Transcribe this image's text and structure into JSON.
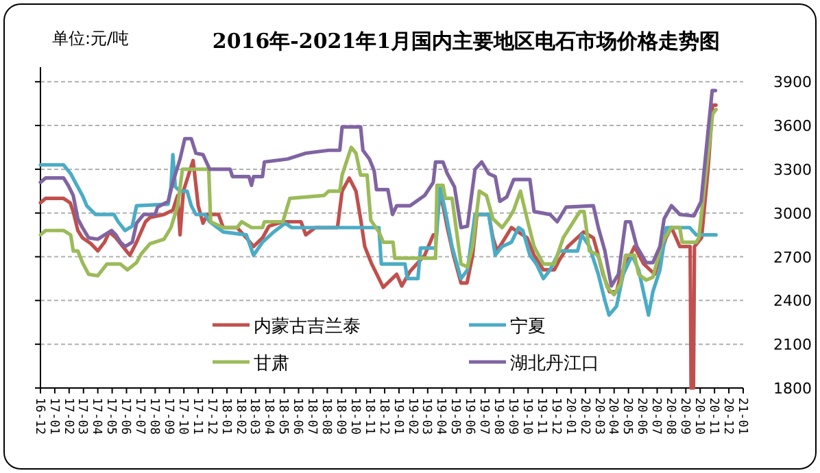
{
  "chart_data": {
    "type": "line",
    "title": "2016年-2021年1月国内主要地区电石市场价格走势图",
    "ylabel": "单位:元/吨",
    "xlim": [
      "2016-12",
      "2021-01"
    ],
    "ylim": [
      1800,
      4000
    ],
    "yticks": [
      1800,
      2100,
      2400,
      2700,
      3000,
      3300,
      3600,
      3900
    ],
    "xticks": [
      {
        "value": "2016-12",
        "label": "16-12"
      },
      {
        "value": "2017-01",
        "label": "17-01"
      },
      {
        "value": "2017-02",
        "label": "17-02"
      },
      {
        "value": "2017-03",
        "label": "17-03"
      },
      {
        "value": "2017-04",
        "label": "17-04"
      },
      {
        "value": "2017-05",
        "label": "17-05"
      },
      {
        "value": "2017-06",
        "label": "17-06"
      },
      {
        "value": "2017-07",
        "label": "17-07"
      },
      {
        "value": "2017-08",
        "label": "17-08"
      },
      {
        "value": "2017-09",
        "label": "17-09"
      },
      {
        "value": "2017-10",
        "label": "17-10"
      },
      {
        "value": "2017-11",
        "label": "17-11"
      },
      {
        "value": "2017-12",
        "label": "17-12"
      },
      {
        "value": "2018-01",
        "label": "18-01"
      },
      {
        "value": "2018-02",
        "label": "18-02"
      },
      {
        "value": "2018-03",
        "label": "18-03"
      },
      {
        "value": "2018-04",
        "label": "18-04"
      },
      {
        "value": "2018-05",
        "label": "18-05"
      },
      {
        "value": "2018-06",
        "label": "18-06"
      },
      {
        "value": "2018-07",
        "label": "18-07"
      },
      {
        "value": "2018-08",
        "label": "18-08"
      },
      {
        "value": "2018-09",
        "label": "18-09"
      },
      {
        "value": "2018-10",
        "label": "18-10"
      },
      {
        "value": "2018-11",
        "label": "18-11"
      },
      {
        "value": "2018-12",
        "label": "18-12"
      },
      {
        "value": "2019-01",
        "label": "19-01"
      },
      {
        "value": "2019-02",
        "label": "19-02"
      },
      {
        "value": "2019-03",
        "label": "19-03"
      },
      {
        "value": "2019-04",
        "label": "19-04"
      },
      {
        "value": "2019-05",
        "label": "19-05"
      },
      {
        "value": "2019-06",
        "label": "19-06"
      },
      {
        "value": "2019-07",
        "label": "19-07"
      },
      {
        "value": "2019-08",
        "label": "19-08"
      },
      {
        "value": "2019-09",
        "label": "19-09"
      },
      {
        "value": "2019-10",
        "label": "19-10"
      },
      {
        "value": "2019-11",
        "label": "19-11"
      },
      {
        "value": "2019-12",
        "label": "19-12"
      },
      {
        "value": "2020-01",
        "label": "20-01"
      },
      {
        "value": "2020-02",
        "label": "20-02"
      },
      {
        "value": "2020-03",
        "label": "20-03"
      },
      {
        "value": "2020-04",
        "label": "20-04"
      },
      {
        "value": "2020-05",
        "label": "20-05"
      },
      {
        "value": "2020-06",
        "label": "20-06"
      },
      {
        "value": "2020-07",
        "label": "20-07"
      },
      {
        "value": "2020-08",
        "label": "20-08"
      },
      {
        "value": "2020-09",
        "label": "20-09"
      },
      {
        "value": "2020-10",
        "label": "20-10"
      },
      {
        "value": "2020-11",
        "label": "20-11"
      },
      {
        "value": "2020-12",
        "label": "20-12"
      },
      {
        "value": "2021-01",
        "label": "21-01"
      }
    ],
    "grid": "y",
    "legend": "bottom",
    "marker": "none",
    "line_style": "solid",
    "series": [
      {
        "name": "内蒙古吉兰泰",
        "color": "#c0504d",
        "x": [
          "2016-12-01",
          "2016-12-12",
          "2017-01-20",
          "2017-02-03",
          "2017-02-09",
          "2017-02-18",
          "2017-02-27",
          "2017-03-17",
          "2017-04-01",
          "2017-04-15",
          "2017-04-25",
          "2017-05-09",
          "2017-05-24",
          "2017-06-08",
          "2017-06-22",
          "2017-07-11",
          "2017-07-21",
          "2017-08-20",
          "2017-09-08",
          "2017-09-18",
          "2017-09-23",
          "2017-09-30",
          "2017-10-12",
          "2017-10-21",
          "2017-11-01",
          "2017-11-11",
          "2017-11-20",
          "2017-12-14",
          "2017-12-24",
          "2018-01-23",
          "2018-02-11",
          "2018-02-25",
          "2018-03-16",
          "2018-03-30",
          "2018-04-28",
          "2018-06-06",
          "2018-06-16",
          "2018-07-06",
          "2018-08-23",
          "2018-09-02",
          "2018-09-17",
          "2018-10-01",
          "2018-10-11",
          "2018-10-20",
          "2018-11-04",
          "2018-11-19",
          "2018-11-28",
          "2018-12-27",
          "2019-01-07",
          "2019-01-25",
          "2019-02-23",
          "2019-03-13",
          "2019-03-20",
          "2019-03-23",
          "2019-04-03",
          "2019-04-12",
          "2019-04-25",
          "2019-05-11",
          "2019-05-24",
          "2019-06-05",
          "2019-06-14",
          "2019-07-09",
          "2019-07-18",
          "2019-07-27",
          "2019-08-27",
          "2019-09-29",
          "2019-10-14",
          "2019-11-03",
          "2019-11-26",
          "2019-12-07",
          "2019-12-25",
          "2020-01-28",
          "2020-02-17",
          "2020-02-27",
          "2020-03-08",
          "2020-03-22",
          "2020-04-06",
          "2020-04-15",
          "2020-05-05",
          "2020-05-14",
          "2020-06-03",
          "2020-06-26",
          "2020-07-20",
          "2020-08-01",
          "2020-08-19",
          "2020-09-10",
          "2020-09-12",
          "2020-09-17",
          "2020-09-19",
          "2020-10-04",
          "2020-10-18",
          "2020-10-28",
          "2020-11-04"
        ],
        "values": [
          3070,
          3100,
          3100,
          3070,
          3010,
          2880,
          2830,
          2790,
          2740,
          2800,
          2870,
          2830,
          2770,
          2710,
          2800,
          2940,
          2970,
          2990,
          3020,
          3120,
          2850,
          3150,
          3270,
          3360,
          3050,
          2930,
          2990,
          2990,
          2900,
          2900,
          2830,
          2770,
          2830,
          2910,
          2940,
          2940,
          2850,
          2900,
          2900,
          3150,
          3240,
          3150,
          2960,
          2770,
          2650,
          2550,
          2490,
          2580,
          2500,
          2600,
          2710,
          2850,
          2850,
          3150,
          3050,
          2900,
          2710,
          2520,
          2520,
          2710,
          2990,
          2990,
          2830,
          2740,
          2900,
          2830,
          2710,
          2610,
          2610,
          2680,
          2770,
          2870,
          2830,
          2710,
          2580,
          2460,
          2460,
          2580,
          2710,
          2770,
          2650,
          2580,
          2830,
          2900,
          2770,
          2770,
          1800,
          1800,
          2770,
          2830,
          3300,
          3740,
          3740
        ]
      },
      {
        "name": "宁夏",
        "color": "#4bacc6",
        "x": [
          "2016-12-01",
          "2017-01-20",
          "2017-02-04",
          "2017-02-13",
          "2017-02-27",
          "2017-03-08",
          "2017-03-27",
          "2017-05-05",
          "2017-05-14",
          "2017-05-29",
          "2017-06-13",
          "2017-06-22",
          "2017-08-29",
          "2017-09-04",
          "2017-09-08",
          "2017-09-13",
          "2017-09-23",
          "2017-10-08",
          "2017-10-17",
          "2017-10-27",
          "2017-11-15",
          "2017-11-25",
          "2017-12-24",
          "2018-02-11",
          "2018-02-25",
          "2018-03-16",
          "2018-04-09",
          "2018-05-03",
          "2018-05-17",
          "2018-11-19",
          "2018-11-24",
          "2019-01-14",
          "2019-01-19",
          "2019-02-10",
          "2019-02-15",
          "2019-03-18",
          "2019-03-28",
          "2019-04-08",
          "2019-04-22",
          "2019-05-11",
          "2019-05-25",
          "2019-06-10",
          "2019-07-09",
          "2019-07-23",
          "2019-08-07",
          "2019-08-27",
          "2019-09-11",
          "2019-09-20",
          "2019-10-05",
          "2019-10-19",
          "2019-11-03",
          "2019-11-17",
          "2019-12-07",
          "2020-01-15",
          "2020-01-24",
          "2020-02-09",
          "2020-02-27",
          "2020-03-12",
          "2020-03-21",
          "2020-04-06",
          "2020-04-20",
          "2020-05-09",
          "2020-05-23",
          "2020-06-13",
          "2020-06-22",
          "2020-07-07",
          "2020-07-21",
          "2020-09-09",
          "2020-09-23",
          "2020-11-04"
        ],
        "values": [
          3330,
          3330,
          3270,
          3210,
          3120,
          3050,
          2990,
          2990,
          2940,
          2880,
          2910,
          3050,
          3060,
          3180,
          3400,
          3180,
          3150,
          3150,
          3050,
          2990,
          2990,
          2940,
          2870,
          2850,
          2710,
          2800,
          2870,
          2930,
          2900,
          2900,
          2650,
          2650,
          2550,
          2550,
          2760,
          2760,
          3180,
          3010,
          2770,
          2550,
          2610,
          2990,
          2990,
          2710,
          2770,
          2800,
          2900,
          2880,
          2710,
          2650,
          2550,
          2610,
          2740,
          2740,
          2850,
          2770,
          2580,
          2400,
          2300,
          2360,
          2580,
          2710,
          2610,
          2300,
          2460,
          2610,
          2900,
          2900,
          2850,
          2850
        ]
      },
      {
        "name": "甘肃",
        "color": "#9bbb59",
        "x": [
          "2016-12-01",
          "2016-12-12",
          "2017-01-20",
          "2017-02-04",
          "2017-02-09",
          "2017-02-18",
          "2017-02-27",
          "2017-03-12",
          "2017-04-01",
          "2017-04-20",
          "2017-05-19",
          "2017-06-03",
          "2017-06-22",
          "2017-07-02",
          "2017-07-21",
          "2017-08-20",
          "2017-09-04",
          "2017-09-18",
          "2017-09-28",
          "2017-11-23",
          "2017-11-27",
          "2017-12-24",
          "2018-01-23",
          "2018-02-02",
          "2018-02-21",
          "2018-03-16",
          "2018-03-20",
          "2018-04-28",
          "2018-05-13",
          "2018-07-25",
          "2018-08-04",
          "2018-08-28",
          "2018-09-02",
          "2018-09-21",
          "2018-10-01",
          "2018-10-11",
          "2018-10-25",
          "2018-11-02",
          "2018-11-19",
          "2018-11-28",
          "2018-12-19",
          "2018-12-23",
          "2019-03-18",
          "2019-03-21",
          "2019-04-03",
          "2019-04-08",
          "2019-04-22",
          "2019-05-11",
          "2019-05-25",
          "2019-06-05",
          "2019-06-19",
          "2019-07-04",
          "2019-07-18",
          "2019-08-07",
          "2019-08-21",
          "2019-09-01",
          "2019-09-15",
          "2019-09-29",
          "2019-10-14",
          "2019-11-03",
          "2019-11-26",
          "2019-12-15",
          "2020-01-20",
          "2020-01-29",
          "2020-02-09",
          "2020-02-27",
          "2020-03-17",
          "2020-04-01",
          "2020-04-15",
          "2020-04-25",
          "2020-05-14",
          "2020-05-23",
          "2020-06-08",
          "2020-06-22",
          "2020-07-12",
          "2020-08-01",
          "2020-08-19",
          "2020-08-24",
          "2020-09-23",
          "2020-09-28",
          "2020-10-28",
          "2020-11-04"
        ],
        "values": [
          2850,
          2880,
          2880,
          2850,
          2740,
          2740,
          2660,
          2580,
          2570,
          2650,
          2650,
          2610,
          2660,
          2720,
          2790,
          2820,
          2900,
          3050,
          3300,
          3300,
          2940,
          2900,
          2900,
          2940,
          2900,
          2900,
          2940,
          2940,
          3100,
          3120,
          3150,
          3150,
          3260,
          3450,
          3410,
          3260,
          3260,
          2950,
          2870,
          2800,
          2800,
          2690,
          2690,
          3190,
          3190,
          3100,
          3100,
          2650,
          2630,
          2770,
          3150,
          3120,
          2960,
          2900,
          2960,
          3020,
          3150,
          2960,
          2770,
          2650,
          2650,
          2830,
          3010,
          3010,
          2740,
          2710,
          2490,
          2440,
          2520,
          2710,
          2710,
          2580,
          2540,
          2560,
          2800,
          2900,
          2900,
          2800,
          2800,
          2830,
          3680,
          3710
        ]
      },
      {
        "name": "湖北丹江口",
        "color": "#8064a2",
        "x": [
          "2016-12-01",
          "2016-12-12",
          "2017-01-20",
          "2017-01-30",
          "2017-02-09",
          "2017-02-18",
          "2017-02-27",
          "2017-03-12",
          "2017-04-01",
          "2017-04-15",
          "2017-04-30",
          "2017-05-09",
          "2017-05-19",
          "2017-05-29",
          "2017-06-13",
          "2017-06-22",
          "2017-07-07",
          "2017-08-01",
          "2017-08-06",
          "2017-08-29",
          "2017-09-08",
          "2017-09-23",
          "2017-10-03",
          "2017-10-17",
          "2017-10-27",
          "2017-11-11",
          "2017-11-25",
          "2018-01-08",
          "2018-01-13",
          "2018-02-16",
          "2018-02-21",
          "2018-02-25",
          "2018-03-16",
          "2018-03-20",
          "2018-05-08",
          "2018-06-16",
          "2018-08-04",
          "2018-08-28",
          "2018-09-02",
          "2018-10-11",
          "2018-10-16",
          "2018-10-30",
          "2018-11-09",
          "2018-11-14",
          "2018-12-08",
          "2018-12-18",
          "2018-12-27",
          "2019-01-25",
          "2019-02-23",
          "2019-03-13",
          "2019-03-18",
          "2019-04-03",
          "2019-04-12",
          "2019-04-27",
          "2019-05-11",
          "2019-05-25",
          "2019-06-10",
          "2019-06-24",
          "2019-07-09",
          "2019-07-23",
          "2019-08-02",
          "2019-08-17",
          "2019-09-01",
          "2019-10-05",
          "2019-10-14",
          "2019-11-17",
          "2019-12-02",
          "2019-12-21",
          "2020-02-17",
          "2020-02-27",
          "2020-03-12",
          "2020-03-26",
          "2020-04-10",
          "2020-04-25",
          "2020-05-05",
          "2020-05-19",
          "2020-06-08",
          "2020-06-22",
          "2020-07-07",
          "2020-07-16",
          "2020-08-01",
          "2020-08-19",
          "2020-09-18",
          "2020-10-03",
          "2020-10-18",
          "2020-10-27",
          "2020-11-03"
        ],
        "values": [
          3210,
          3240,
          3240,
          3190,
          3120,
          2960,
          2900,
          2830,
          2820,
          2850,
          2880,
          2850,
          2800,
          2770,
          2800,
          2930,
          2990,
          2990,
          3040,
          3080,
          3210,
          3370,
          3510,
          3510,
          3410,
          3400,
          3300,
          3300,
          3250,
          3250,
          3190,
          3250,
          3250,
          3350,
          3370,
          3410,
          3430,
          3430,
          3590,
          3590,
          3430,
          3370,
          3290,
          3160,
          3160,
          2990,
          3050,
          3050,
          3120,
          3210,
          3350,
          3350,
          3270,
          3180,
          2900,
          2910,
          3300,
          3350,
          3270,
          3250,
          3080,
          3110,
          3230,
          3230,
          3010,
          2990,
          2940,
          3040,
          3050,
          2900,
          2740,
          2500,
          2580,
          2940,
          2940,
          2770,
          2660,
          2660,
          2770,
          2960,
          3050,
          2990,
          2980,
          3080,
          3560,
          3840,
          3840
        ]
      }
    ]
  }
}
